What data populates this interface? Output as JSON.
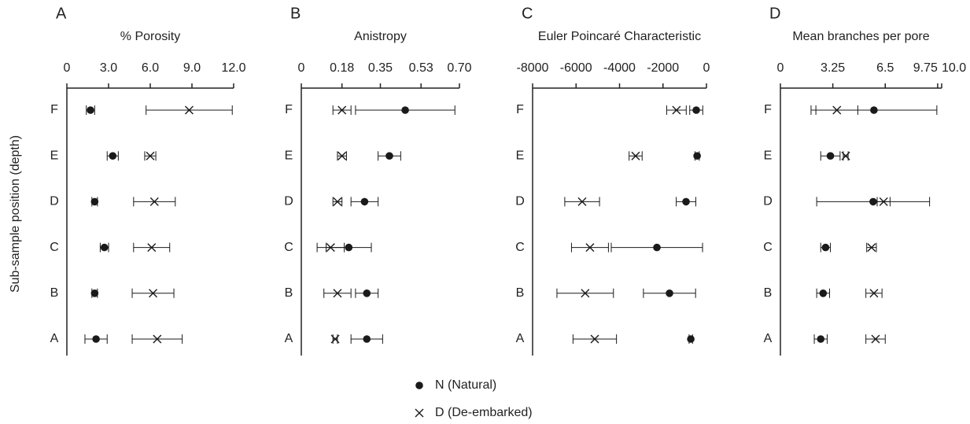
{
  "chart_data": [
    {
      "type": "scatter",
      "panel": "A",
      "title": "% Porosity",
      "ylabel": "Sub-sample position (depth)",
      "categories": [
        "A",
        "B",
        "C",
        "D",
        "E",
        "F"
      ],
      "xlim": [
        0,
        12
      ],
      "xticks": [
        0,
        {
          "value": 3,
          "label": "3.0"
        },
        {
          "value": 6,
          "label": "6.0"
        },
        {
          "value": 9,
          "label": "9.0"
        },
        {
          "value": 12,
          "label": "12.0"
        }
      ],
      "series": [
        {
          "name": "N (Natural)",
          "marker": "circle",
          "color": "#1a1a1a",
          "values": [
            2.1,
            2.0,
            2.7,
            2.0,
            3.3,
            1.7
          ],
          "errors": [
            0.8,
            0.2,
            0.3,
            0.2,
            0.4,
            0.3
          ]
        },
        {
          "name": "D (De-embarked)",
          "marker": "cross",
          "color": "#1a1a1a",
          "values": [
            6.5,
            6.2,
            6.1,
            6.3,
            6.0,
            8.8
          ],
          "errors": [
            1.8,
            1.5,
            1.3,
            1.5,
            0.4,
            3.1
          ]
        }
      ]
    },
    {
      "type": "scatter",
      "panel": "B",
      "title": "Anistropy",
      "categories": [
        "A",
        "B",
        "C",
        "D",
        "E",
        "F"
      ],
      "xlim": [
        0,
        0.7
      ],
      "xticks": [
        0,
        0.18,
        0.35,
        0.53,
        {
          "value": 0.7,
          "label": "0.70"
        }
      ],
      "series": [
        {
          "marker": "circle",
          "color": "#1a1a1a",
          "values": [
            0.29,
            0.29,
            0.21,
            0.28,
            0.39,
            0.46
          ],
          "errors": [
            0.07,
            0.05,
            0.1,
            0.06,
            0.05,
            0.22
          ]
        },
        {
          "marker": "cross",
          "color": "#1a1a1a",
          "values": [
            0.15,
            0.16,
            0.13,
            0.16,
            0.18,
            0.18
          ],
          "errors": [
            0.01,
            0.06,
            0.06,
            0.02,
            0.02,
            0.04
          ]
        }
      ]
    },
    {
      "type": "scatter",
      "panel": "C",
      "title": "Euler Poincaré Characteristic",
      "categories": [
        "A",
        "B",
        "C",
        "D",
        "E",
        "F"
      ],
      "xlim": [
        -8000,
        0
      ],
      "xticks": [
        -8000,
        -6000,
        -4000,
        -2000,
        0
      ],
      "series": [
        {
          "marker": "circle",
          "color": "#1a1a1a",
          "values": [
            -720,
            -1700,
            -2280,
            -940,
            -430,
            -470
          ],
          "errors": [
            80,
            1200,
            2100,
            450,
            100,
            300
          ]
        },
        {
          "marker": "cross",
          "color": "#1a1a1a",
          "values": [
            -5140,
            -5580,
            -5360,
            -5720,
            -3260,
            -1380
          ],
          "errors": [
            1000,
            1300,
            850,
            800,
            300,
            450
          ]
        }
      ]
    },
    {
      "type": "scatter",
      "panel": "D",
      "title": "Mean branches per pore",
      "categories": [
        "A",
        "B",
        "C",
        "D",
        "E",
        "F"
      ],
      "xlim": [
        0,
        10
      ],
      "xticks": [
        0,
        3.25,
        6.5,
        9.75,
        {
          "value": 10,
          "label": "10.0"
        }
      ],
      "series": [
        {
          "marker": "circle",
          "color": "#1a1a1a",
          "values": [
            2.5,
            2.65,
            2.8,
            5.75,
            3.1,
            5.8
          ],
          "errors": [
            0.4,
            0.4,
            0.3,
            3.5,
            0.6,
            3.9
          ]
        },
        {
          "marker": "cross",
          "color": "#1a1a1a",
          "values": [
            5.9,
            5.8,
            5.65,
            6.4,
            4.05,
            3.5
          ],
          "errors": [
            0.6,
            0.5,
            0.3,
            0.4,
            0.15,
            1.3
          ]
        }
      ]
    }
  ]
}
